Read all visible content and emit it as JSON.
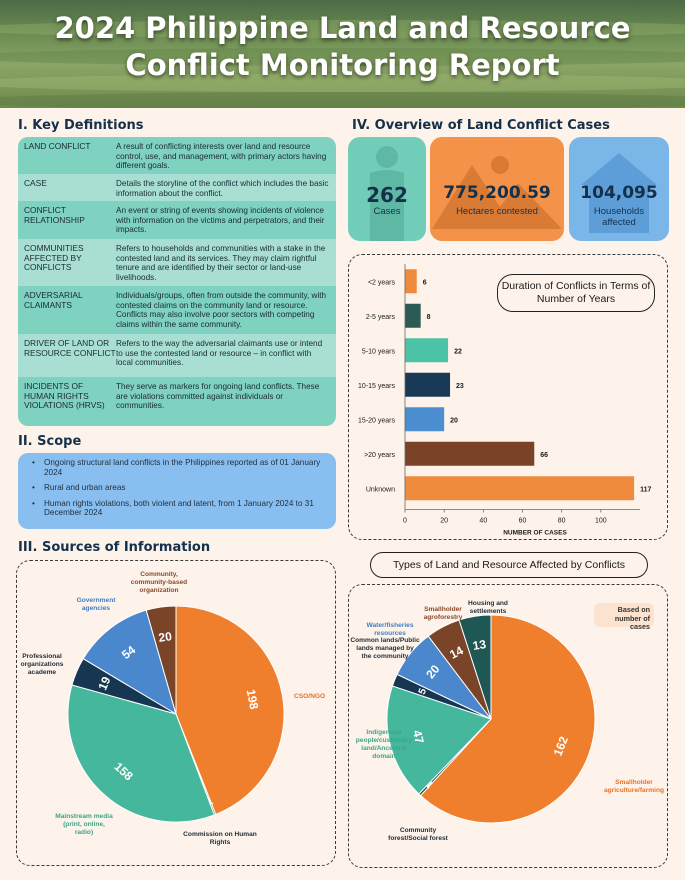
{
  "header": {
    "title_line1": "2024 Philippine Land and Resource",
    "title_line2": "Conflict Monitoring Report"
  },
  "definitions": {
    "heading": "I.   Key Definitions",
    "items": [
      {
        "term": "Land Conflict",
        "desc": "A result of conflicting interests over land and resource control, use, and management, with primary actors having different goals."
      },
      {
        "term": "Case",
        "desc": "Details the storyline of the conflict which includes the basic information about the conflict."
      },
      {
        "term": "Conflict Relationship",
        "desc": "An event or string of events showing incidents of violence with information on the victims and perpetrators, and their impacts."
      },
      {
        "term": "Communities Affected by Conflicts",
        "desc": "Refers to households and communities with a stake in the contested land and its services. They may claim rightful tenure and are identified by their sector or land-use livelihoods."
      },
      {
        "term": "Adversarial Claimants",
        "desc": "Individuals/groups, often from outside the community, with contested claims on the community land or resource. Conflicts may also involve poor sectors with competing claims within the same community."
      },
      {
        "term": "Driver of Land or Resource Conflict",
        "desc": "Refers to the way the adversarial claimants use or intend to use the contested land or resource – in conflict with local communities."
      },
      {
        "term": "Incidents of Human Rights Violations (HRVs)",
        "desc": "They serve as markers for ongoing land conflicts. These are violations committed against individuals or communities."
      }
    ]
  },
  "scope": {
    "heading": "II. Scope",
    "items": [
      "Ongoing structural land conflicts in the Philippines reported as of 01 January 2024",
      "Rural and urban areas",
      "Human rights violations, both violent and latent, from 1 January 2024 to 31 December 2024"
    ]
  },
  "sources_heading": "III. Sources of Information",
  "overview": {
    "heading": "IV. Overview of Land Conflict Cases",
    "stats": [
      {
        "value": "262",
        "label": "Cases",
        "color": "#72cdb8",
        "icon": "person-icon"
      },
      {
        "value": "775,200.59",
        "label": "Hectares contested",
        "color": "#f4924a",
        "icon": "mountain-icon"
      },
      {
        "value": "104,095",
        "label": "Households affected",
        "color": "#7bb6e8",
        "icon": "house-icon"
      }
    ]
  },
  "land_types_title": "Types of Land and Resource Affected by Conflicts",
  "land_types_note": "Based on number of cases",
  "chart_data": [
    {
      "type": "bar",
      "orientation": "horizontal",
      "title": "Duration of Conflicts in Terms of Number of Years",
      "categories": [
        "<2 years",
        "2-5 years",
        "5-10 years",
        "10-15 years",
        "15-20 years",
        ">20 years",
        "Unknown"
      ],
      "values": [
        6,
        8,
        22,
        23,
        20,
        66,
        117
      ],
      "colors": [
        "#f08a3c",
        "#2c5a55",
        "#4cc3a6",
        "#183a56",
        "#4b8fd1",
        "#7a4327",
        "#f08a3c"
      ],
      "xlabel": "NUMBER OF CASES",
      "ylabel": "",
      "xlim": [
        0,
        120
      ],
      "xticks": [
        0,
        20,
        40,
        60,
        80,
        100
      ],
      "grid": false
    },
    {
      "type": "pie",
      "categories": [
        "CSO/NGO",
        "Commission on Human Rights",
        "Mainstream media (print, online, radio)",
        "Professional organizations academe",
        "Government agencies",
        "Community, community-based organization"
      ],
      "values": [
        198,
        1,
        158,
        19,
        54,
        20
      ],
      "colors": [
        "#f07f2d",
        "#2b4a4a",
        "#45b79c",
        "#173651",
        "#4a87cc",
        "#7a4429"
      ],
      "label_colors": [
        "#e8722a",
        "#1f2d3a",
        "#3aa58a",
        "#1f2d3a",
        "#3d7fc6",
        "#8a4a2a"
      ]
    },
    {
      "type": "pie",
      "categories": [
        "Smallholder agriculture/farming",
        "Community forest/Social forest",
        "Indigenous people/customary land/Ancestral domain",
        "Common lands/Public lands managed by the community",
        "Water/fisheries resources",
        "Smallholder agroforestry",
        "Housing and settlements"
      ],
      "values": [
        162,
        1,
        47,
        5,
        20,
        14,
        13
      ],
      "colors": [
        "#f07f2d",
        "#2b4a4a",
        "#45b79c",
        "#173651",
        "#4a87cc",
        "#7a4429",
        "#1f5754"
      ],
      "label_colors": [
        "#e8722a",
        "#1f2d3a",
        "#3aa58a",
        "#1f2d3a",
        "#3d7fc6",
        "#8a4a2a",
        "#1f2d3a"
      ]
    }
  ]
}
